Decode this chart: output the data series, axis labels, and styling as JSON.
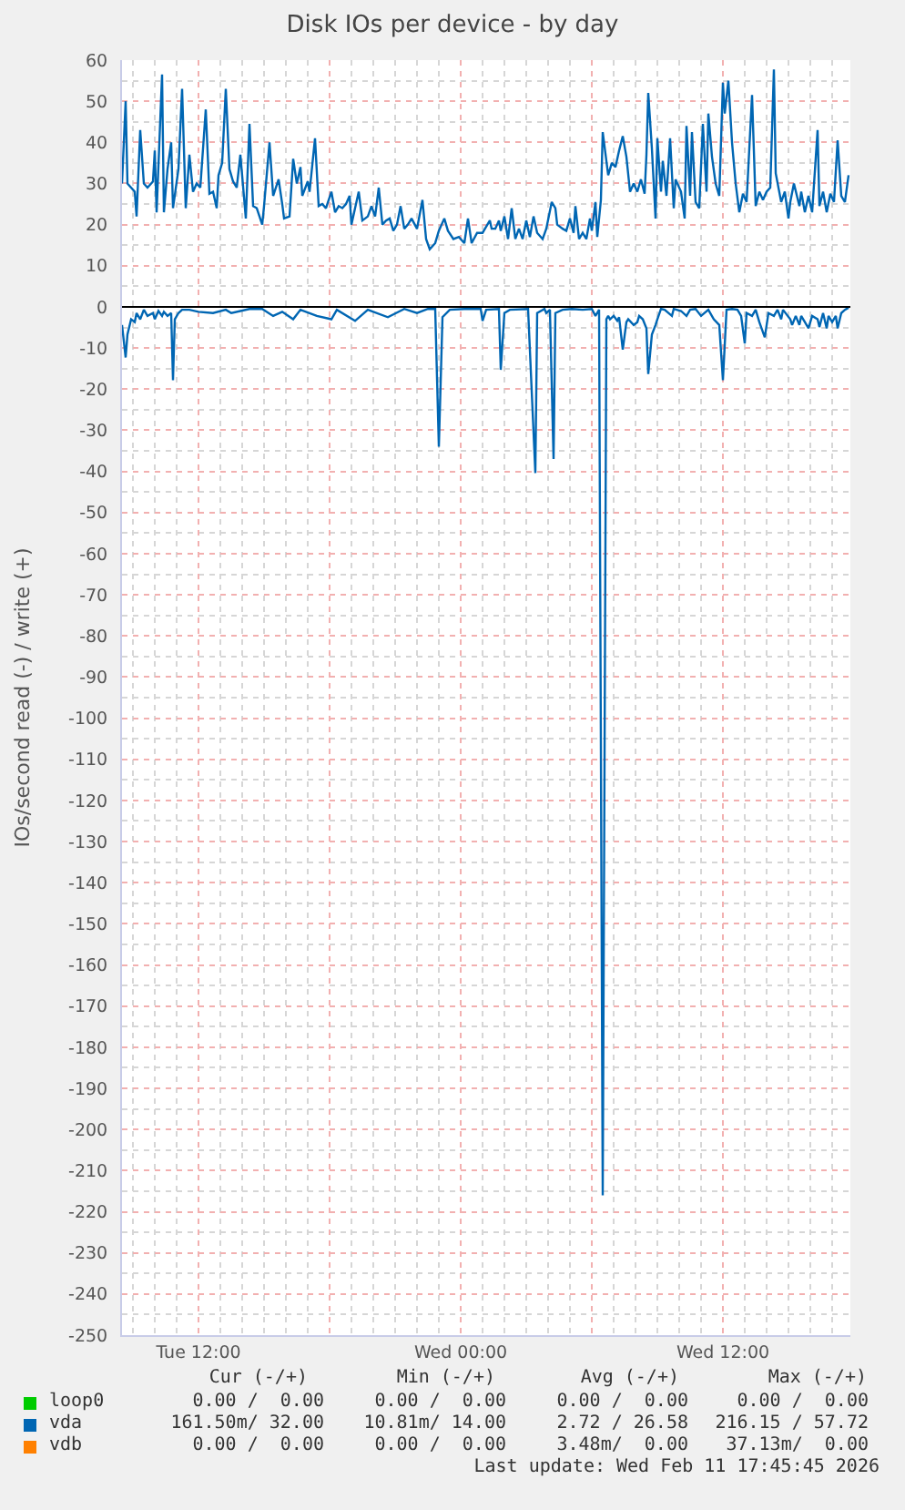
{
  "chart_data": {
    "type": "line",
    "title": "Disk IOs per device - by day",
    "ylabel": "IOs/second read (-) / write (+)",
    "xlim": [
      "2026-02-10T08:30",
      "2026-02-11T17:50"
    ],
    "xticks": [
      {
        "value": "2026-02-10T12:00",
        "label": "Tue 12:00"
      },
      {
        "value": "2026-02-10T18:00",
        "label": null
      },
      {
        "value": "2026-02-11T00:00",
        "label": "Wed 00:00"
      },
      {
        "value": "2026-02-11T06:00",
        "label": null
      },
      {
        "value": "2026-02-11T12:00",
        "label": "Wed 12:00"
      }
    ],
    "ylim": [
      -250,
      60
    ],
    "yticks": [
      -250,
      -240,
      -230,
      -220,
      -210,
      -200,
      -190,
      -180,
      -170,
      -160,
      -150,
      -140,
      -130,
      -120,
      -110,
      -100,
      -90,
      -80,
      -70,
      -60,
      -50,
      -40,
      -30,
      -20,
      -10,
      0,
      10,
      20,
      30,
      40,
      50,
      60
    ],
    "grid": true,
    "legend": "bottom left",
    "ref_lines": [
      {
        "axis": "y",
        "value": 0,
        "color": "#000000"
      }
    ],
    "series": [
      {
        "name": "loop0",
        "color": "#00cc00"
      },
      {
        "name": "vda",
        "color": "#0066b3",
        "x": [
          "2026-02-10T08:30",
          "2026-02-10T08:40",
          "2026-02-10T08:45",
          "2026-02-10T09:05",
          "2026-02-10T09:10",
          "2026-02-10T09:20",
          "2026-02-10T09:30",
          "2026-02-10T09:40",
          "2026-02-10T09:55",
          "2026-02-10T10:00",
          "2026-02-10T10:05",
          "2026-02-10T10:20",
          "2026-02-10T10:25",
          "2026-02-10T10:35",
          "2026-02-10T10:45",
          "2026-02-10T10:50",
          "2026-02-10T11:05",
          "2026-02-10T11:15",
          "2026-02-10T11:25",
          "2026-02-10T11:35",
          "2026-02-10T11:45",
          "2026-02-10T11:55",
          "2026-02-10T12:05",
          "2026-02-10T12:20",
          "2026-02-10T12:30",
          "2026-02-10T12:40",
          "2026-02-10T12:50",
          "2026-02-10T12:55",
          "2026-02-10T13:05",
          "2026-02-10T13:15",
          "2026-02-10T13:25",
          "2026-02-10T13:35",
          "2026-02-10T13:45",
          "2026-02-10T13:55",
          "2026-02-10T14:10",
          "2026-02-10T14:20",
          "2026-02-10T14:30",
          "2026-02-10T14:40",
          "2026-02-10T14:55",
          "2026-02-10T15:00",
          "2026-02-10T15:15",
          "2026-02-10T15:25",
          "2026-02-10T15:40",
          "2026-02-10T15:50",
          "2026-02-10T15:55",
          "2026-02-10T16:10",
          "2026-02-10T16:20",
          "2026-02-10T16:30",
          "2026-02-10T16:40",
          "2026-02-10T16:45",
          "2026-02-10T17:00",
          "2026-02-10T17:05",
          "2026-02-10T17:20",
          "2026-02-10T17:30",
          "2026-02-10T17:40",
          "2026-02-10T17:50",
          "2026-02-10T18:05",
          "2026-02-10T18:15",
          "2026-02-10T18:25",
          "2026-02-10T18:35",
          "2026-02-10T18:45",
          "2026-02-10T18:55",
          "2026-02-10T19:00",
          "2026-02-10T19:10",
          "2026-02-10T19:20",
          "2026-02-10T19:30",
          "2026-02-10T19:45",
          "2026-02-10T19:55",
          "2026-02-10T20:05",
          "2026-02-10T20:15",
          "2026-02-10T20:25",
          "2026-02-10T20:35",
          "2026-02-10T20:45",
          "2026-02-10T20:55",
          "2026-02-10T21:05",
          "2026-02-10T21:15",
          "2026-02-10T21:25",
          "2026-02-10T21:35",
          "2026-02-10T21:45",
          "2026-02-10T22:00",
          "2026-02-10T22:15",
          "2026-02-10T22:25",
          "2026-02-10T22:35",
          "2026-02-10T22:50",
          "2026-02-10T23:00",
          "2026-02-10T23:15",
          "2026-02-10T23:25",
          "2026-02-10T23:40",
          "2026-02-10T23:55",
          "2026-02-11T00:10",
          "2026-02-11T00:20",
          "2026-02-11T00:30",
          "2026-02-11T00:45",
          "2026-02-11T01:00",
          "2026-02-11T01:20",
          "2026-02-11T01:25",
          "2026-02-11T01:35",
          "2026-02-11T01:45",
          "2026-02-11T01:50",
          "2026-02-11T02:00",
          "2026-02-11T02:10",
          "2026-02-11T02:20",
          "2026-02-11T02:30",
          "2026-02-11T02:40",
          "2026-02-11T02:50",
          "2026-02-11T03:00",
          "2026-02-11T03:10",
          "2026-02-11T03:20",
          "2026-02-11T03:30",
          "2026-02-11T03:45",
          "2026-02-11T03:55",
          "2026-02-11T04:10",
          "2026-02-11T04:20",
          "2026-02-11T04:25",
          "2026-02-11T04:40",
          "2026-02-11T04:50",
          "2026-02-11T05:00",
          "2026-02-11T05:10",
          "2026-02-11T05:15",
          "2026-02-11T05:25",
          "2026-02-11T05:35",
          "2026-02-11T05:45",
          "2026-02-11T05:55",
          "2026-02-11T06:00",
          "2026-02-11T06:10",
          "2026-02-11T06:15",
          "2026-02-11T06:25",
          "2026-02-11T06:30",
          "2026-02-11T06:45",
          "2026-02-11T06:55",
          "2026-02-11T07:05",
          "2026-02-11T07:15",
          "2026-02-11T07:25",
          "2026-02-11T07:35",
          "2026-02-11T07:45",
          "2026-02-11T07:55",
          "2026-02-11T08:05",
          "2026-02-11T08:15",
          "2026-02-11T08:25",
          "2026-02-11T08:30",
          "2026-02-11T08:35",
          "2026-02-11T08:45",
          "2026-02-11T08:55",
          "2026-02-11T09:00",
          "2026-02-11T09:10",
          "2026-02-11T09:15",
          "2026-02-11T09:25",
          "2026-02-11T09:35",
          "2026-02-11T09:45",
          "2026-02-11T09:50",
          "2026-02-11T10:05",
          "2026-02-11T10:15",
          "2026-02-11T10:20",
          "2026-02-11T10:30",
          "2026-02-11T10:35",
          "2026-02-11T10:45",
          "2026-02-11T10:55",
          "2026-02-11T11:05",
          "2026-02-11T11:15",
          "2026-02-11T11:20",
          "2026-02-11T11:30",
          "2026-02-11T11:40",
          "2026-02-11T11:50",
          "2026-02-11T12:00",
          "2026-02-11T12:05",
          "2026-02-11T12:15",
          "2026-02-11T12:25",
          "2026-02-11T12:35",
          "2026-02-11T12:45",
          "2026-02-11T12:55",
          "2026-02-11T13:05",
          "2026-02-11T13:20",
          "2026-02-11T13:30",
          "2026-02-11T13:40",
          "2026-02-11T13:50",
          "2026-02-11T14:00",
          "2026-02-11T14:10",
          "2026-02-11T14:20",
          "2026-02-11T14:25",
          "2026-02-11T14:40",
          "2026-02-11T14:50",
          "2026-02-11T15:00",
          "2026-02-11T15:05",
          "2026-02-11T15:15",
          "2026-02-11T15:30",
          "2026-02-11T15:35",
          "2026-02-11T15:45",
          "2026-02-11T15:55",
          "2026-02-11T16:05",
          "2026-02-11T16:20",
          "2026-02-11T16:25",
          "2026-02-11T16:35",
          "2026-02-11T16:45",
          "2026-02-11T16:55",
          "2026-02-11T17:05",
          "2026-02-11T17:15",
          "2026-02-11T17:25",
          "2026-02-11T17:35",
          "2026-02-11T17:45"
        ],
        "values": [
          30,
          50,
          30,
          28,
          22,
          43,
          30,
          29,
          30.5,
          38,
          23,
          56.5,
          23,
          33.5,
          40,
          24,
          33.5,
          53,
          24,
          37,
          28,
          30,
          29,
          48,
          27.5,
          28,
          24,
          32,
          35,
          53,
          33.5,
          30.5,
          29,
          37,
          21.5,
          44.5,
          24.5,
          24,
          20,
          24.5,
          40,
          27,
          31,
          25,
          21.5,
          22,
          36,
          30,
          34,
          27,
          30.5,
          28,
          41,
          24.5,
          25,
          24,
          28,
          23,
          24.5,
          24,
          25,
          27,
          20,
          24,
          28,
          21,
          22,
          24.5,
          22,
          29,
          20,
          21,
          21.5,
          18.5,
          20,
          24.5,
          19,
          20,
          21.5,
          19,
          26,
          16.5,
          14,
          15.5,
          18.5,
          21.5,
          18.5,
          16.5,
          17,
          15.5,
          21.5,
          15.5,
          18,
          18,
          21,
          19,
          19,
          21,
          18.5,
          22,
          16.5,
          24,
          16.5,
          19,
          16.5,
          21,
          17,
          22,
          18,
          16.5,
          19,
          25.5,
          24,
          20,
          19,
          18.5,
          21.5,
          18,
          24.5,
          16.5,
          18,
          16.5,
          21.5,
          18.5,
          25.5,
          17,
          26,
          42.5,
          32,
          35,
          34,
          38,
          41.5,
          36.5,
          28,
          30,
          28,
          31,
          27.5,
          37,
          52,
          38.5,
          21.5,
          41,
          28,
          35.5,
          27,
          41,
          24,
          31,
          28,
          21.5,
          44,
          27,
          42.5,
          25.5,
          24,
          44.5,
          28,
          47,
          36.5,
          30,
          27,
          54.5,
          47,
          55,
          40,
          30,
          23,
          27.5,
          25.5,
          51.5,
          24.5,
          28,
          26,
          28,
          29,
          57.7,
          32.5,
          25.5,
          28,
          21.5,
          25.5,
          30,
          24.5,
          28,
          23,
          27,
          23,
          43,
          24.5,
          28,
          23,
          27.5,
          25.5,
          40.5,
          27,
          25.5,
          32
        ]
      },
      {
        "color": "#0066b3",
        "x": [
          "2026-02-10T08:30",
          "2026-02-10T08:40",
          "2026-02-10T08:45",
          "2026-02-10T08:55",
          "2026-02-10T09:05",
          "2026-02-10T09:10",
          "2026-02-10T09:20",
          "2026-02-10T09:30",
          "2026-02-10T09:40",
          "2026-02-10T09:55",
          "2026-02-10T10:00",
          "2026-02-10T10:10",
          "2026-02-10T10:20",
          "2026-02-10T10:25",
          "2026-02-10T10:35",
          "2026-02-10T10:45",
          "2026-02-10T10:50",
          "2026-02-10T10:55",
          "2026-02-10T11:05",
          "2026-02-10T11:15",
          "2026-02-10T11:35",
          "2026-02-10T12:00",
          "2026-02-10T12:40",
          "2026-02-10T13:15",
          "2026-02-10T13:30",
          "2026-02-10T14:20",
          "2026-02-10T14:55",
          "2026-02-10T15:25",
          "2026-02-10T15:50",
          "2026-02-10T16:20",
          "2026-02-10T16:40",
          "2026-02-10T17:25",
          "2026-02-10T18:05",
          "2026-02-10T18:20",
          "2026-02-10T19:10",
          "2026-02-10T19:45",
          "2026-02-10T20:40",
          "2026-02-10T21:25",
          "2026-02-10T22:00",
          "2026-02-10T22:30",
          "2026-02-10T22:50",
          "2026-02-10T23:00",
          "2026-02-10T23:10",
          "2026-02-10T23:30",
          "2026-02-11T00:10",
          "2026-02-11T00:55",
          "2026-02-11T01:00",
          "2026-02-11T01:10",
          "2026-02-11T01:45",
          "2026-02-11T01:50",
          "2026-02-11T02:00",
          "2026-02-11T02:15",
          "2026-02-11T03:05",
          "2026-02-11T03:25",
          "2026-02-11T03:30",
          "2026-02-11T03:50",
          "2026-02-11T03:55",
          "2026-02-11T04:05",
          "2026-02-11T04:15",
          "2026-02-11T04:20",
          "2026-02-11T04:40",
          "2026-02-11T05:05",
          "2026-02-11T05:35",
          "2026-02-11T06:00",
          "2026-02-11T06:10",
          "2026-02-11T06:20",
          "2026-02-11T06:30",
          "2026-02-11T06:40",
          "2026-02-11T06:45",
          "2026-02-11T06:50",
          "2026-02-11T07:00",
          "2026-02-11T07:10",
          "2026-02-11T07:15",
          "2026-02-11T07:25",
          "2026-02-11T07:35",
          "2026-02-11T07:40",
          "2026-02-11T07:55",
          "2026-02-11T08:05",
          "2026-02-11T08:10",
          "2026-02-11T08:20",
          "2026-02-11T08:30",
          "2026-02-11T08:35",
          "2026-02-11T08:45",
          "2026-02-11T08:55",
          "2026-02-11T09:00",
          "2026-02-11T09:10",
          "2026-02-11T09:20",
          "2026-02-11T09:40",
          "2026-02-11T09:45",
          "2026-02-11T10:05",
          "2026-02-11T10:20",
          "2026-02-11T10:30",
          "2026-02-11T10:45",
          "2026-02-11T11:00",
          "2026-02-11T11:20",
          "2026-02-11T11:35",
          "2026-02-11T11:50",
          "2026-02-11T12:00",
          "2026-02-11T12:10",
          "2026-02-11T12:25",
          "2026-02-11T12:40",
          "2026-02-11T12:50",
          "2026-02-11T13:00",
          "2026-02-11T13:05",
          "2026-02-11T13:20",
          "2026-02-11T13:30",
          "2026-02-11T13:40",
          "2026-02-11T13:55",
          "2026-02-11T14:05",
          "2026-02-11T14:20",
          "2026-02-11T14:30",
          "2026-02-11T14:40",
          "2026-02-11T14:45",
          "2026-02-11T15:05",
          "2026-02-11T15:10",
          "2026-02-11T15:20",
          "2026-02-11T15:30",
          "2026-02-11T15:35",
          "2026-02-11T15:45",
          "2026-02-11T15:55",
          "2026-02-11T16:05",
          "2026-02-11T16:20",
          "2026-02-11T16:25",
          "2026-02-11T16:35",
          "2026-02-11T16:45",
          "2026-02-11T16:50",
          "2026-02-11T17:00",
          "2026-02-11T17:10",
          "2026-02-11T17:15",
          "2026-02-11T17:25",
          "2026-02-11T17:35",
          "2026-02-11T17:45"
        ],
        "values": [
          -4.4,
          -12.3,
          -6.7,
          -3,
          -3.7,
          -1.5,
          -3,
          -0.7,
          -2.2,
          -1.5,
          -3,
          -1,
          -2.2,
          -1.2,
          -2.2,
          -1.5,
          -17.8,
          -3,
          -1.5,
          -0.7,
          -0.7,
          -1.2,
          -1.5,
          -0.7,
          -1.5,
          -0.5,
          -0.5,
          -2.2,
          -1.2,
          -3,
          -0.7,
          -2.2,
          -3,
          -0.7,
          -3.4,
          -0.7,
          -2.5,
          -0.5,
          -1.5,
          -0.5,
          -0.5,
          -34,
          -2.5,
          -0.7,
          -0.5,
          -0.5,
          -3.4,
          -0.7,
          -0.5,
          -15.3,
          -1.5,
          -0.7,
          -0.5,
          -40.4,
          -1.5,
          -0.5,
          -1.5,
          -0.7,
          -37,
          -1.5,
          -0.7,
          -0.5,
          -0.7,
          -0.5,
          -2.2,
          -0.7,
          -216,
          -3,
          -2.2,
          -3,
          -2.2,
          -3.4,
          -2.5,
          -10.4,
          -3.7,
          -3,
          -4.4,
          -3.7,
          -2.2,
          -3,
          -5.2,
          -16.3,
          -6.7,
          -4.4,
          -3,
          -0.5,
          -0.7,
          -2.2,
          -0.5,
          -1,
          -2.2,
          -0.7,
          -0.5,
          -2.2,
          -0.7,
          -3,
          -4.4,
          -17.8,
          -0.7,
          -0.5,
          -0.7,
          -2.2,
          -8.9,
          -1.5,
          -2.2,
          -0.7,
          -3.7,
          -7.4,
          -1.5,
          -2.2,
          -0.7,
          -3,
          -0.7,
          -3,
          -4.4,
          -2.2,
          -4.4,
          -2.2,
          -3.7,
          -5.2,
          -2.2,
          -3,
          -4.9,
          -1.5,
          -5.2,
          -2.2,
          -3.7,
          -2.2,
          -5.2,
          -1.5,
          -0.7,
          -0.2
        ]
      },
      {
        "name": "vdb",
        "color": "#ff8000"
      }
    ],
    "annotations": [
      "Cur (-/+)",
      "Min (-/+)",
      "Avg (-/+)",
      "Max (-/+)",
      "0.00 /  0.00",
      "0.00 /  0.00",
      "0.00 /  0.00",
      "0.00 /  0.00",
      "161.50m/ 32.00",
      "10.81m/ 14.00",
      "2.72 / 26.58",
      "216.15 / 57.72",
      "0.00 /  0.00",
      "0.00 /  0.00",
      "3.48m/  0.00",
      "37.13m/  0.00",
      "Last update: Wed Feb 11 17:45:45 2026"
    ]
  }
}
